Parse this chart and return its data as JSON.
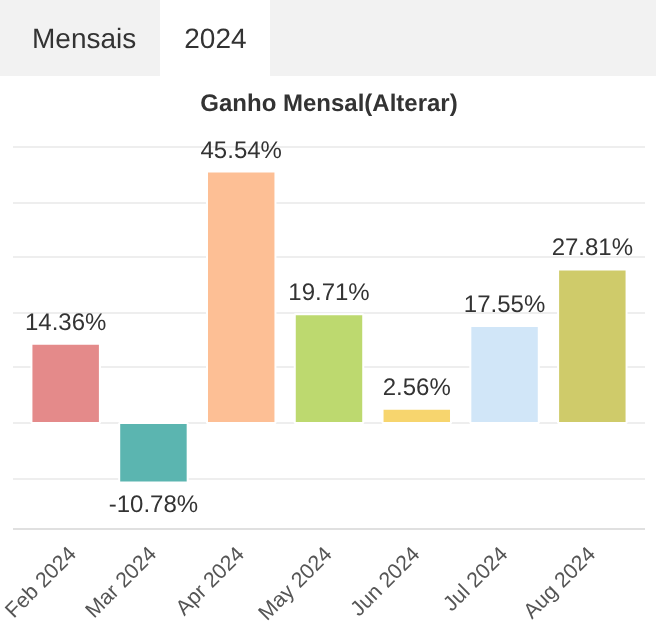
{
  "chart_data": {
    "type": "bar",
    "title": "Ganho Mensal(Alterar)",
    "annotations": [
      "Mensais",
      "2024"
    ],
    "categories": [
      "Feb 2024",
      "Mar 2024",
      "Apr 2024",
      "May 2024",
      "Jun 2024",
      "Jul 2024",
      "Aug 2024"
    ],
    "values": [
      14.36,
      -10.78,
      45.54,
      19.71,
      2.56,
      17.55,
      27.81
    ],
    "value_labels": [
      "14.36%",
      "-10.78%",
      "45.54%",
      "19.71%",
      "2.56%",
      "17.55%",
      "27.81%"
    ],
    "colors": [
      "#e48a8a",
      "#5bb5b0",
      "#fdbf95",
      "#bdd96f",
      "#f7d56e",
      "#d1e6f8",
      "#cfcb6a"
    ],
    "grid": "y",
    "tick_labels": "x"
  }
}
